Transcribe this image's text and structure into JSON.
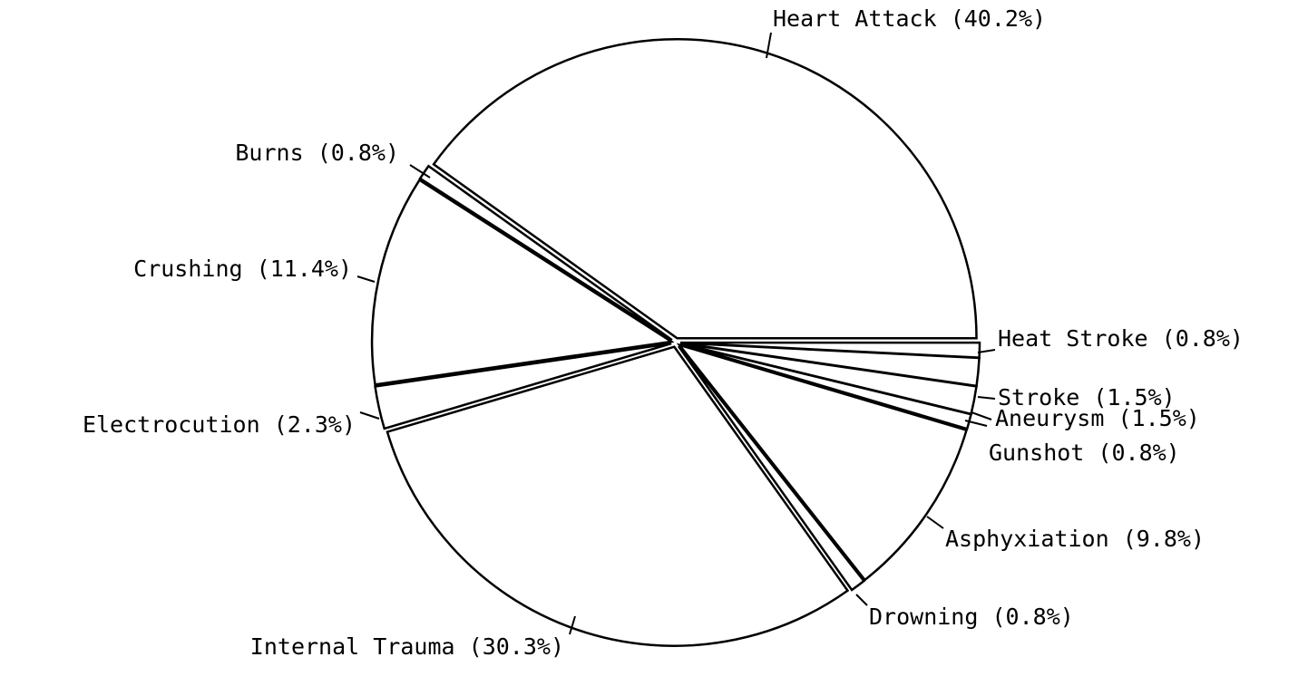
{
  "chart_data": {
    "type": "pie",
    "categories": [
      "Heart Attack",
      "Burns",
      "Crushing",
      "Electrocution",
      "Internal Trauma",
      "Drowning",
      "Asphyxiation",
      "Gunshot",
      "Aneurysm",
      "Stroke",
      "Heat Stroke"
    ],
    "values": [
      40.2,
      0.8,
      11.4,
      2.3,
      30.3,
      0.8,
      9.8,
      0.8,
      1.5,
      1.5,
      0.8
    ],
    "value_labels": [
      "(40.2%)",
      "(0.8%)",
      "(11.4%)",
      "(2.3%)",
      "(30.3%)",
      "(0.8%)",
      "(9.8%)",
      "(0.8%)",
      "(1.5%)",
      "(1.5%)",
      "(0.8%)"
    ],
    "color": "#ffffff",
    "edge_color": "#000000"
  }
}
